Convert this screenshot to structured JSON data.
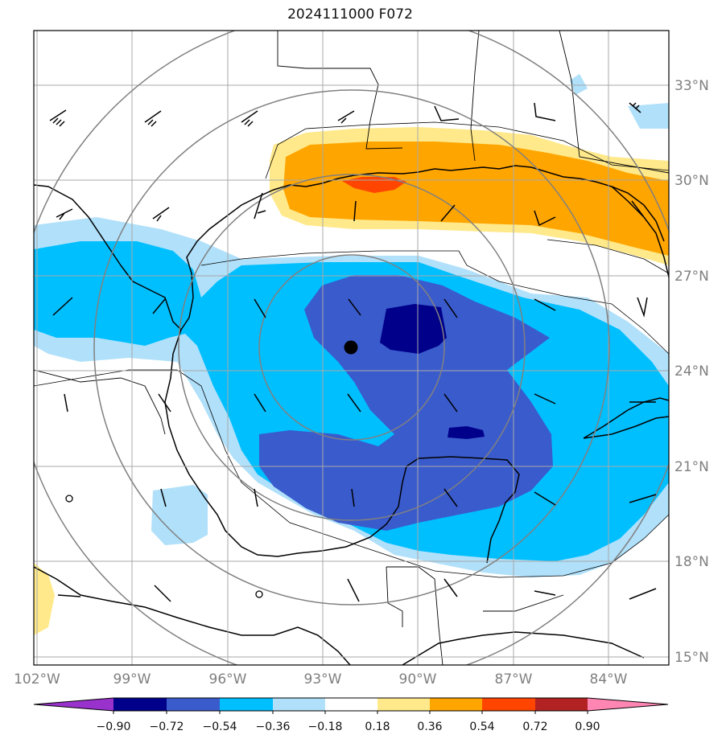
{
  "title": "2024111000 F072",
  "lat_labels": [
    "33°N",
    "30°N",
    "27°N",
    "24°N",
    "21°N",
    "18°N",
    "15°N"
  ],
  "lon_labels": [
    "102°W",
    "99°W",
    "96°W",
    "93°W",
    "90°W",
    "87°W",
    "84°W"
  ],
  "colorbar": {
    "labels": [
      "−0.90",
      "−0.72",
      "−0.54",
      "−0.36",
      "−0.18",
      "0.18",
      "0.36",
      "0.54",
      "0.72",
      "0.90"
    ],
    "colors": [
      "#9932cc",
      "#00008b",
      "#3a5bcc",
      "#00bfff",
      "#b0e0fa",
      "#ffffff",
      "#ffe98a",
      "#ffa500",
      "#ff4500",
      "#b22222",
      "#ff85b3"
    ]
  },
  "fill_colors": {
    "light_blue": "#b0e0fa",
    "blue": "#00bfff",
    "royal_blue": "#3a5bcc",
    "navy": "#00008b",
    "light_yellow": "#ffe98a",
    "orange": "#ffa500",
    "red_orange": "#ff4500"
  },
  "center_marker": {
    "lat": 24.7,
    "lon": -92.2
  }
}
